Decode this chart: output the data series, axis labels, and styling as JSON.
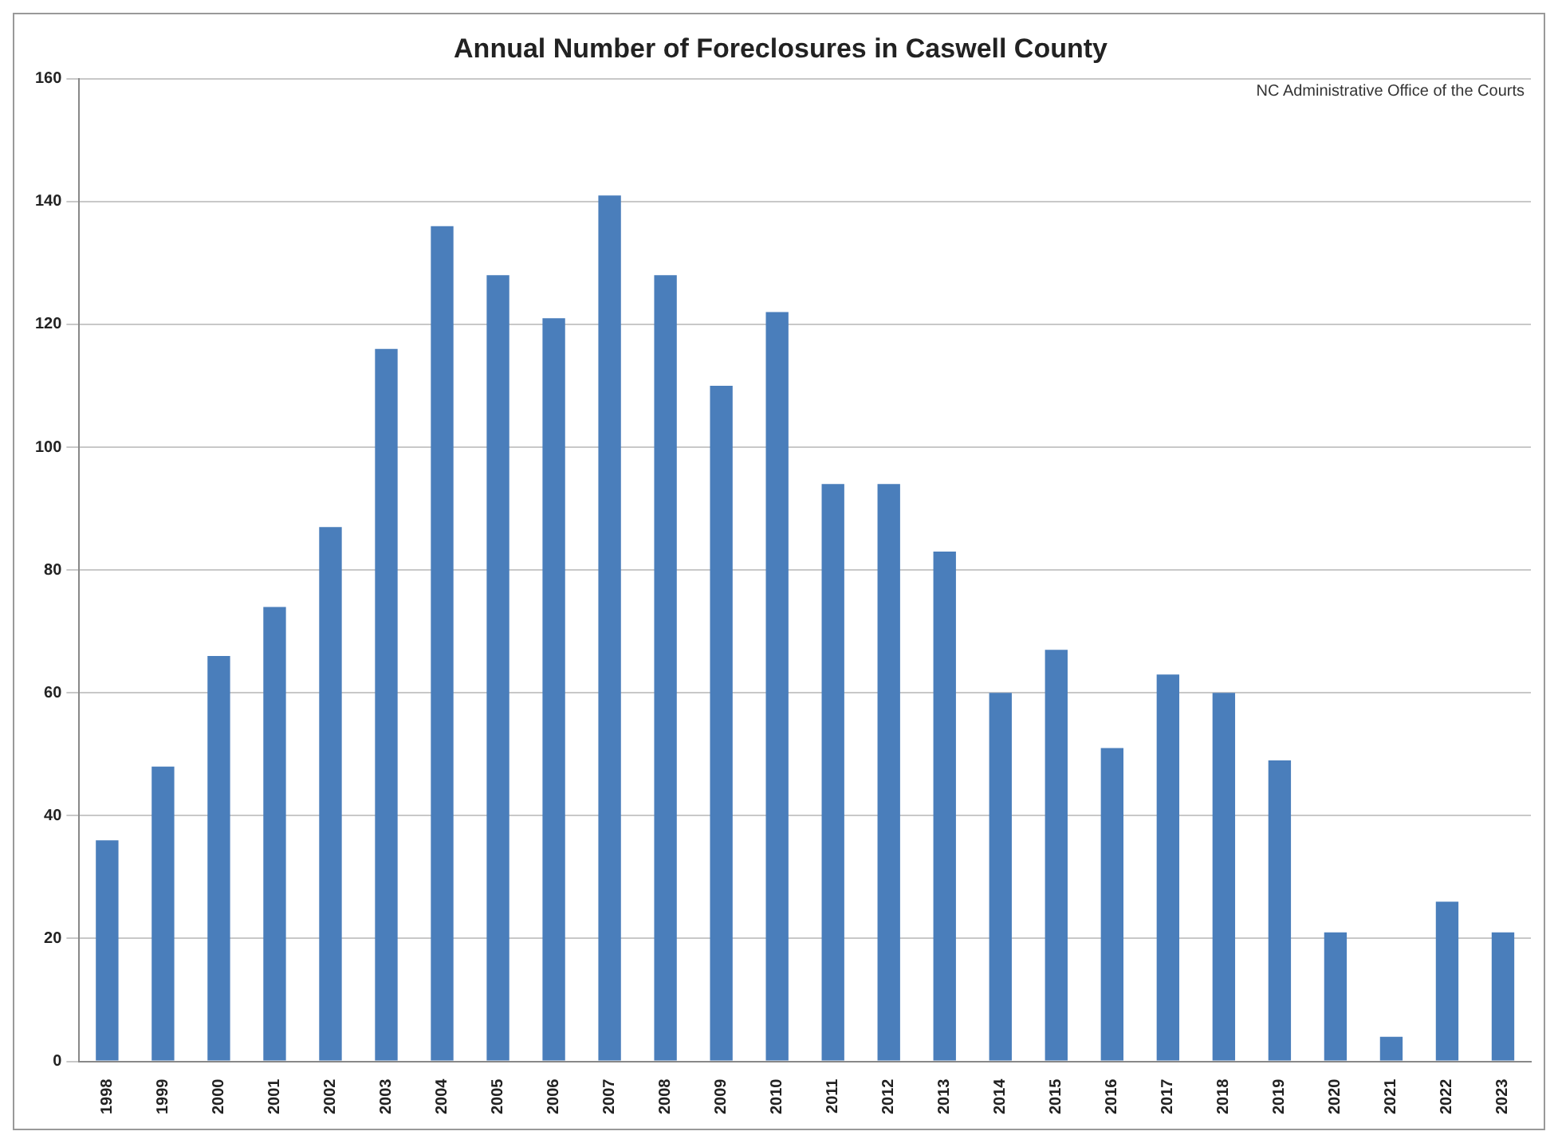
{
  "chart_data": {
    "type": "bar",
    "title": "Annual Number of Foreclosures in Caswell County",
    "annotations": [
      "NC Administrative Office of the Courts"
    ],
    "categories": [
      "1998",
      "1999",
      "2000",
      "2001",
      "2002",
      "2003",
      "2004",
      "2005",
      "2006",
      "2007",
      "2008",
      "2009",
      "2010",
      "2011",
      "2012",
      "2013",
      "2014",
      "2015",
      "2016",
      "2017",
      "2018",
      "2019",
      "2020",
      "2021",
      "2022",
      "2023"
    ],
    "values": [
      36,
      48,
      66,
      74,
      87,
      116,
      136,
      128,
      121,
      141,
      128,
      110,
      122,
      94,
      94,
      83,
      60,
      67,
      51,
      63,
      60,
      49,
      21,
      4,
      26,
      21
    ],
    "color": "#4a7ebb",
    "ylim": [
      0,
      160
    ],
    "yticks": [
      0,
      20,
      40,
      60,
      80,
      100,
      120,
      140,
      160
    ],
    "grid": "y",
    "legend": false
  }
}
